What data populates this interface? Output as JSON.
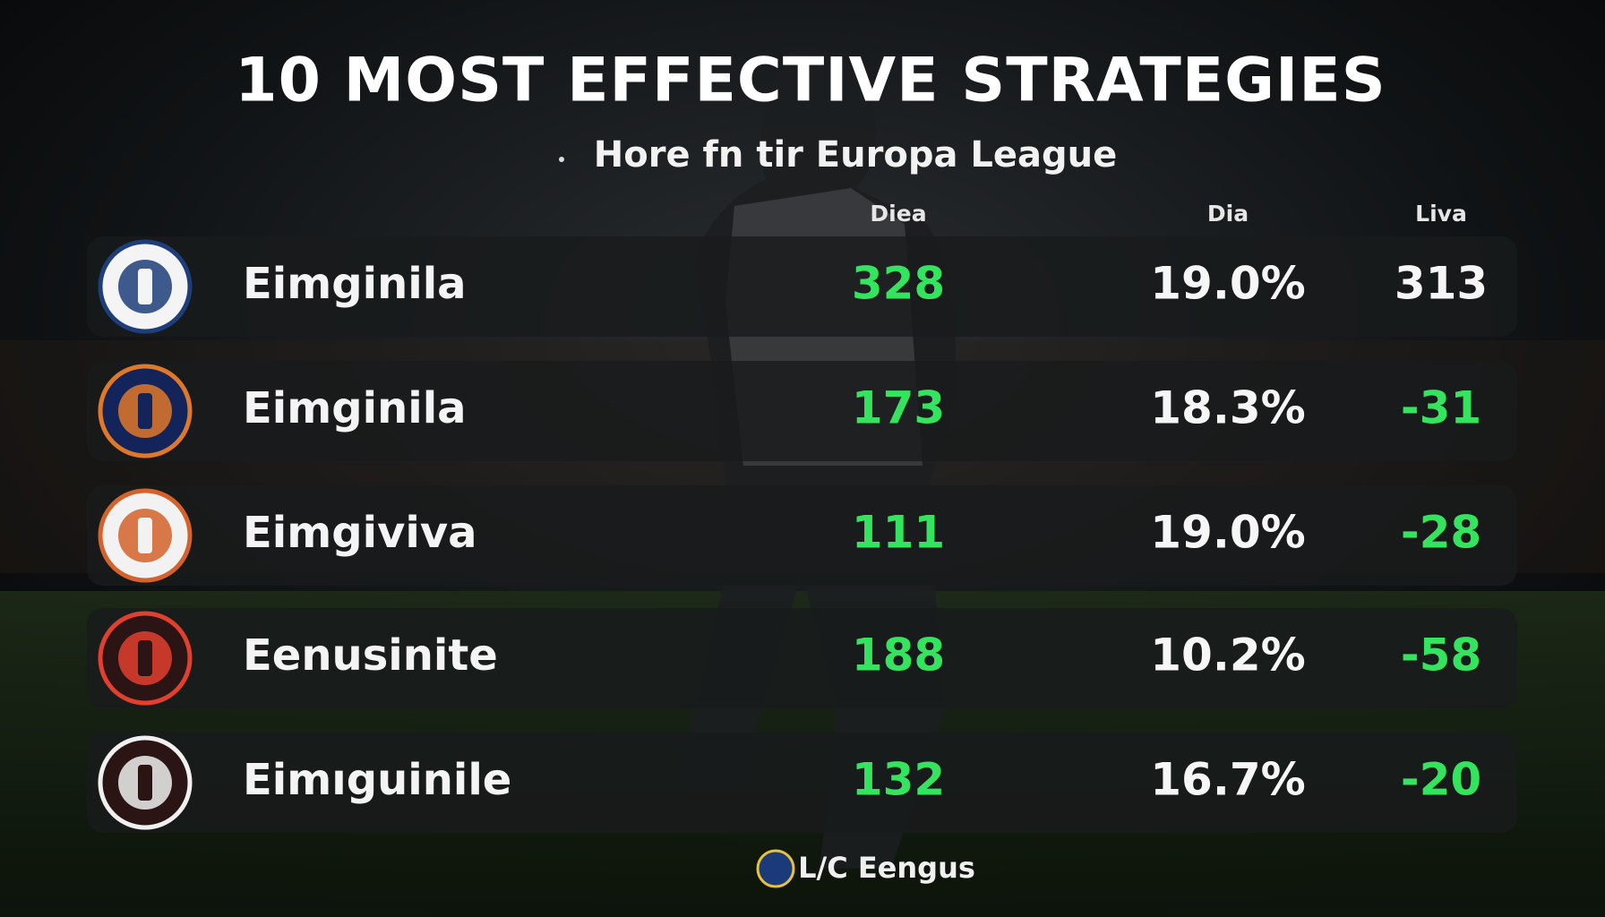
{
  "header": {
    "title": "10 MOST EFFECTIVE STRATEGIES",
    "subtitle": "Hore fn tir Europa League"
  },
  "table": {
    "columns": [
      "Diea",
      "Dia",
      "Liva"
    ],
    "rows": [
      {
        "name": "Eimginila",
        "cells": [
          "328",
          "19.0%",
          "313"
        ]
      },
      {
        "name": "Eimginila",
        "cells": [
          "173",
          "18.3%",
          "-31"
        ]
      },
      {
        "name": "Eimgivіva",
        "cells": [
          "111",
          "19.0%",
          "-28"
        ]
      },
      {
        "name": "Eenusinite",
        "cells": [
          "188",
          "10.2%",
          "-58"
        ]
      },
      {
        "name": "Eimıguinile",
        "cells": [
          "132",
          "16.7%",
          "-20"
        ]
      }
    ]
  },
  "footer": {
    "brand": "L/C Eengus"
  }
}
